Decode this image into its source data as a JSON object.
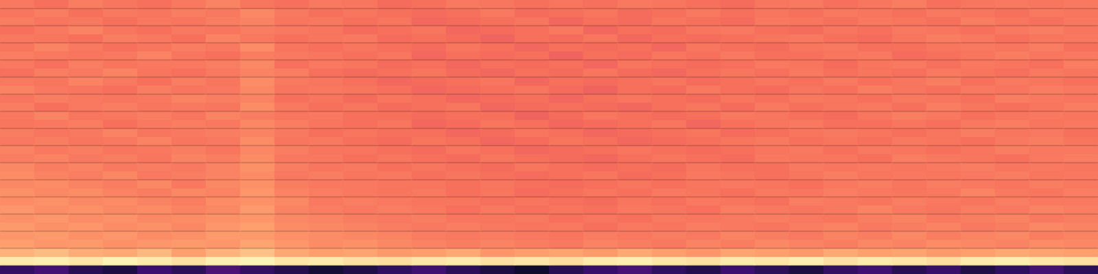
{
  "chart_data": {
    "type": "heatmap",
    "grid": false,
    "tick_labels": false,
    "zlim": [
      0,
      1
    ],
    "cells": [
      [
        0.72,
        0.7,
        0.73,
        0.71,
        0.7,
        0.72,
        0.74,
        0.71,
        0.7,
        0.72,
        0.71,
        0.69,
        0.7,
        0.72,
        0.71,
        0.7,
        0.71,
        0.7,
        0.72,
        0.71,
        0.7,
        0.69,
        0.71,
        0.72,
        0.7,
        0.71,
        0.73,
        0.7,
        0.71,
        0.72,
        0.71,
        0.72
      ],
      [
        0.71,
        0.73,
        0.7,
        0.72,
        0.71,
        0.73,
        0.72,
        0.75,
        0.72,
        0.7,
        0.71,
        0.7,
        0.69,
        0.7,
        0.72,
        0.69,
        0.7,
        0.71,
        0.69,
        0.7,
        0.72,
        0.7,
        0.71,
        0.7,
        0.72,
        0.71,
        0.7,
        0.72,
        0.71,
        0.7,
        0.72,
        0.71
      ],
      [
        0.73,
        0.71,
        0.72,
        0.7,
        0.72,
        0.71,
        0.73,
        0.74,
        0.71,
        0.72,
        0.7,
        0.71,
        0.68,
        0.69,
        0.7,
        0.71,
        0.68,
        0.7,
        0.69,
        0.71,
        0.7,
        0.69,
        0.72,
        0.71,
        0.7,
        0.72,
        0.71,
        0.7,
        0.73,
        0.71,
        0.7,
        0.72
      ],
      [
        0.7,
        0.72,
        0.74,
        0.71,
        0.7,
        0.72,
        0.71,
        0.73,
        0.72,
        0.71,
        0.69,
        0.7,
        0.71,
        0.68,
        0.69,
        0.7,
        0.72,
        0.68,
        0.7,
        0.69,
        0.71,
        0.72,
        0.7,
        0.69,
        0.71,
        0.7,
        0.72,
        0.71,
        0.7,
        0.72,
        0.73,
        0.71
      ],
      [
        0.72,
        0.71,
        0.7,
        0.73,
        0.72,
        0.7,
        0.74,
        0.72,
        0.7,
        0.71,
        0.72,
        0.69,
        0.7,
        0.69,
        0.67,
        0.7,
        0.69,
        0.71,
        0.68,
        0.7,
        0.69,
        0.7,
        0.71,
        0.72,
        0.7,
        0.69,
        0.71,
        0.73,
        0.72,
        0.7,
        0.71,
        0.72
      ],
      [
        0.71,
        0.74,
        0.72,
        0.7,
        0.71,
        0.73,
        0.72,
        0.76,
        0.71,
        0.7,
        0.71,
        0.7,
        0.69,
        0.71,
        0.7,
        0.68,
        0.7,
        0.69,
        0.7,
        0.68,
        0.71,
        0.7,
        0.69,
        0.71,
        0.72,
        0.7,
        0.7,
        0.71,
        0.72,
        0.71,
        0.73,
        0.7
      ],
      [
        0.73,
        0.72,
        0.71,
        0.72,
        0.74,
        0.71,
        0.7,
        0.73,
        0.72,
        0.71,
        0.7,
        0.71,
        0.68,
        0.7,
        0.69,
        0.7,
        0.67,
        0.7,
        0.69,
        0.71,
        0.7,
        0.72,
        0.7,
        0.7,
        0.71,
        0.72,
        0.69,
        0.7,
        0.71,
        0.73,
        0.71,
        0.72
      ],
      [
        0.72,
        0.7,
        0.73,
        0.71,
        0.72,
        0.72,
        0.73,
        0.75,
        0.7,
        0.72,
        0.71,
        0.69,
        0.7,
        0.68,
        0.7,
        0.69,
        0.7,
        0.68,
        0.71,
        0.7,
        0.69,
        0.7,
        0.72,
        0.71,
        0.69,
        0.71,
        0.72,
        0.7,
        0.72,
        0.71,
        0.7,
        0.73
      ],
      [
        0.7,
        0.73,
        0.72,
        0.74,
        0.71,
        0.7,
        0.72,
        0.74,
        0.73,
        0.7,
        0.69,
        0.7,
        0.71,
        0.69,
        0.68,
        0.7,
        0.69,
        0.71,
        0.69,
        0.68,
        0.7,
        0.71,
        0.7,
        0.72,
        0.7,
        0.71,
        0.7,
        0.72,
        0.71,
        0.7,
        0.72,
        0.71
      ],
      [
        0.72,
        0.71,
        0.74,
        0.72,
        0.7,
        0.73,
        0.71,
        0.76,
        0.72,
        0.71,
        0.7,
        0.68,
        0.69,
        0.7,
        0.71,
        0.68,
        0.7,
        0.69,
        0.7,
        0.71,
        0.69,
        0.7,
        0.71,
        0.7,
        0.72,
        0.7,
        0.71,
        0.73,
        0.7,
        0.72,
        0.71,
        0.7
      ],
      [
        0.74,
        0.72,
        0.71,
        0.7,
        0.73,
        0.71,
        0.72,
        0.75,
        0.71,
        0.72,
        0.71,
        0.7,
        0.68,
        0.69,
        0.7,
        0.71,
        0.69,
        0.67,
        0.7,
        0.69,
        0.72,
        0.7,
        0.69,
        0.71,
        0.7,
        0.73,
        0.71,
        0.7,
        0.72,
        0.71,
        0.73,
        0.72
      ],
      [
        0.71,
        0.73,
        0.72,
        0.71,
        0.72,
        0.74,
        0.73,
        0.74,
        0.7,
        0.71,
        0.69,
        0.71,
        0.7,
        0.68,
        0.69,
        0.7,
        0.68,
        0.7,
        0.71,
        0.7,
        0.69,
        0.71,
        0.7,
        0.72,
        0.71,
        0.7,
        0.72,
        0.71,
        0.7,
        0.73,
        0.72,
        0.71
      ],
      [
        0.73,
        0.7,
        0.72,
        0.73,
        0.71,
        0.72,
        0.71,
        0.76,
        0.72,
        0.7,
        0.71,
        0.69,
        0.7,
        0.71,
        0.68,
        0.69,
        0.7,
        0.69,
        0.68,
        0.7,
        0.71,
        0.69,
        0.72,
        0.7,
        0.71,
        0.72,
        0.7,
        0.73,
        0.71,
        0.7,
        0.71,
        0.73
      ],
      [
        0.72,
        0.74,
        0.71,
        0.72,
        0.73,
        0.71,
        0.74,
        0.73,
        0.71,
        0.72,
        0.7,
        0.7,
        0.69,
        0.7,
        0.7,
        0.67,
        0.69,
        0.71,
        0.7,
        0.69,
        0.7,
        0.72,
        0.71,
        0.7,
        0.69,
        0.71,
        0.73,
        0.72,
        0.7,
        0.71,
        0.72,
        0.71
      ],
      [
        0.71,
        0.72,
        0.73,
        0.7,
        0.72,
        0.73,
        0.72,
        0.75,
        0.73,
        0.71,
        0.7,
        0.71,
        0.68,
        0.69,
        0.71,
        0.7,
        0.68,
        0.69,
        0.7,
        0.71,
        0.68,
        0.7,
        0.71,
        0.72,
        0.7,
        0.7,
        0.71,
        0.7,
        0.72,
        0.73,
        0.71,
        0.72
      ],
      [
        0.73,
        0.71,
        0.72,
        0.74,
        0.71,
        0.72,
        0.73,
        0.74,
        0.72,
        0.7,
        0.71,
        0.7,
        0.7,
        0.68,
        0.69,
        0.71,
        0.7,
        0.68,
        0.69,
        0.7,
        0.71,
        0.69,
        0.7,
        0.71,
        0.72,
        0.71,
        0.7,
        0.71,
        0.73,
        0.71,
        0.72,
        0.7
      ],
      [
        0.72,
        0.73,
        0.71,
        0.72,
        0.74,
        0.71,
        0.72,
        0.76,
        0.71,
        0.72,
        0.7,
        0.69,
        0.71,
        0.7,
        0.68,
        0.69,
        0.71,
        0.7,
        0.68,
        0.69,
        0.7,
        0.71,
        0.72,
        0.7,
        0.71,
        0.7,
        0.72,
        0.71,
        0.7,
        0.72,
        0.73,
        0.71
      ],
      [
        0.74,
        0.72,
        0.73,
        0.71,
        0.72,
        0.73,
        0.71,
        0.75,
        0.73,
        0.71,
        0.71,
        0.7,
        0.69,
        0.71,
        0.7,
        0.68,
        0.69,
        0.7,
        0.71,
        0.7,
        0.69,
        0.7,
        0.71,
        0.72,
        0.7,
        0.72,
        0.71,
        0.7,
        0.71,
        0.73,
        0.72,
        0.72
      ],
      [
        0.73,
        0.74,
        0.72,
        0.73,
        0.71,
        0.74,
        0.73,
        0.76,
        0.72,
        0.72,
        0.7,
        0.71,
        0.7,
        0.69,
        0.71,
        0.7,
        0.69,
        0.68,
        0.7,
        0.71,
        0.7,
        0.69,
        0.72,
        0.71,
        0.71,
        0.7,
        0.73,
        0.72,
        0.71,
        0.7,
        0.72,
        0.73
      ],
      [
        0.75,
        0.73,
        0.74,
        0.72,
        0.73,
        0.72,
        0.74,
        0.77,
        0.73,
        0.71,
        0.72,
        0.7,
        0.71,
        0.7,
        0.69,
        0.71,
        0.7,
        0.69,
        0.7,
        0.69,
        0.71,
        0.7,
        0.7,
        0.72,
        0.71,
        0.72,
        0.71,
        0.72,
        0.73,
        0.71,
        0.72,
        0.71
      ],
      [
        0.76,
        0.74,
        0.73,
        0.75,
        0.72,
        0.73,
        0.74,
        0.76,
        0.72,
        0.73,
        0.71,
        0.72,
        0.7,
        0.71,
        0.7,
        0.69,
        0.7,
        0.71,
        0.69,
        0.7,
        0.72,
        0.71,
        0.7,
        0.71,
        0.73,
        0.71,
        0.72,
        0.71,
        0.72,
        0.73,
        0.71,
        0.72
      ],
      [
        0.75,
        0.76,
        0.74,
        0.73,
        0.75,
        0.72,
        0.75,
        0.77,
        0.73,
        0.72,
        0.72,
        0.71,
        0.71,
        0.7,
        0.71,
        0.7,
        0.69,
        0.7,
        0.71,
        0.7,
        0.71,
        0.72,
        0.71,
        0.7,
        0.72,
        0.73,
        0.71,
        0.73,
        0.72,
        0.71,
        0.73,
        0.72
      ],
      [
        0.77,
        0.75,
        0.76,
        0.74,
        0.73,
        0.75,
        0.74,
        0.78,
        0.74,
        0.73,
        0.72,
        0.71,
        0.72,
        0.7,
        0.71,
        0.69,
        0.7,
        0.71,
        0.7,
        0.72,
        0.71,
        0.7,
        0.72,
        0.71,
        0.73,
        0.72,
        0.71,
        0.72,
        0.74,
        0.72,
        0.71,
        0.73
      ],
      [
        0.76,
        0.77,
        0.75,
        0.76,
        0.74,
        0.73,
        0.76,
        0.77,
        0.75,
        0.72,
        0.73,
        0.72,
        0.71,
        0.71,
        0.7,
        0.71,
        0.7,
        0.69,
        0.71,
        0.7,
        0.72,
        0.71,
        0.7,
        0.73,
        0.72,
        0.71,
        0.73,
        0.72,
        0.71,
        0.73,
        0.72,
        0.72
      ],
      [
        0.78,
        0.76,
        0.77,
        0.75,
        0.76,
        0.74,
        0.75,
        0.79,
        0.74,
        0.73,
        0.72,
        0.73,
        0.72,
        0.7,
        0.72,
        0.7,
        0.71,
        0.7,
        0.72,
        0.71,
        0.7,
        0.73,
        0.72,
        0.71,
        0.72,
        0.74,
        0.72,
        0.71,
        0.73,
        0.72,
        0.74,
        0.73
      ],
      [
        0.77,
        0.78,
        0.76,
        0.77,
        0.75,
        0.76,
        0.77,
        0.78,
        0.75,
        0.74,
        0.73,
        0.72,
        0.73,
        0.71,
        0.71,
        0.72,
        0.7,
        0.71,
        0.7,
        0.72,
        0.71,
        0.72,
        0.73,
        0.72,
        0.71,
        0.73,
        0.74,
        0.72,
        0.73,
        0.74,
        0.72,
        0.73
      ],
      [
        0.79,
        0.77,
        0.78,
        0.76,
        0.77,
        0.75,
        0.78,
        0.8,
        0.76,
        0.75,
        0.74,
        0.73,
        0.72,
        0.73,
        0.72,
        0.71,
        0.72,
        0.7,
        0.72,
        0.71,
        0.73,
        0.72,
        0.71,
        0.73,
        0.74,
        0.72,
        0.73,
        0.74,
        0.72,
        0.73,
        0.75,
        0.74
      ],
      [
        0.78,
        0.79,
        0.77,
        0.78,
        0.76,
        0.77,
        0.79,
        0.79,
        0.77,
        0.76,
        0.75,
        0.74,
        0.73,
        0.72,
        0.73,
        0.72,
        0.71,
        0.73,
        0.72,
        0.73,
        0.72,
        0.74,
        0.73,
        0.72,
        0.74,
        0.73,
        0.75,
        0.73,
        0.74,
        0.75,
        0.73,
        0.74
      ],
      [
        0.8,
        0.78,
        0.79,
        0.77,
        0.78,
        0.79,
        0.78,
        0.81,
        0.78,
        0.76,
        0.77,
        0.75,
        0.74,
        0.73,
        0.74,
        0.73,
        0.72,
        0.74,
        0.73,
        0.72,
        0.74,
        0.73,
        0.75,
        0.74,
        0.73,
        0.75,
        0.74,
        0.76,
        0.75,
        0.74,
        0.76,
        0.75
      ],
      [
        0.84,
        0.86,
        0.83,
        0.82,
        0.85,
        0.8,
        0.84,
        0.87,
        0.82,
        0.8,
        0.81,
        0.79,
        0.8,
        0.82,
        0.78,
        0.8,
        0.81,
        0.79,
        0.82,
        0.8,
        0.78,
        0.81,
        0.8,
        0.79,
        0.82,
        0.8,
        0.81,
        0.79,
        0.8,
        0.82,
        0.81,
        0.8
      ],
      [
        0.96,
        0.97,
        0.95,
        0.98,
        0.96,
        0.94,
        0.97,
        0.98,
        0.95,
        0.96,
        0.94,
        0.93,
        0.95,
        0.96,
        0.94,
        0.95,
        0.93,
        0.96,
        0.97,
        0.95,
        0.94,
        0.96,
        0.95,
        0.97,
        0.94,
        0.96,
        0.95,
        0.93,
        0.96,
        0.97,
        0.95,
        0.94
      ],
      [
        0.18,
        0.22,
        0.15,
        0.12,
        0.2,
        0.16,
        0.24,
        0.18,
        0.14,
        0.1,
        0.13,
        0.17,
        0.21,
        0.16,
        0.12,
        0.08,
        0.15,
        0.19,
        0.23,
        0.17,
        0.14,
        0.2,
        0.16,
        0.12,
        0.18,
        0.21,
        0.15,
        0.19,
        0.13,
        0.17,
        0.22,
        0.16
      ]
    ]
  }
}
